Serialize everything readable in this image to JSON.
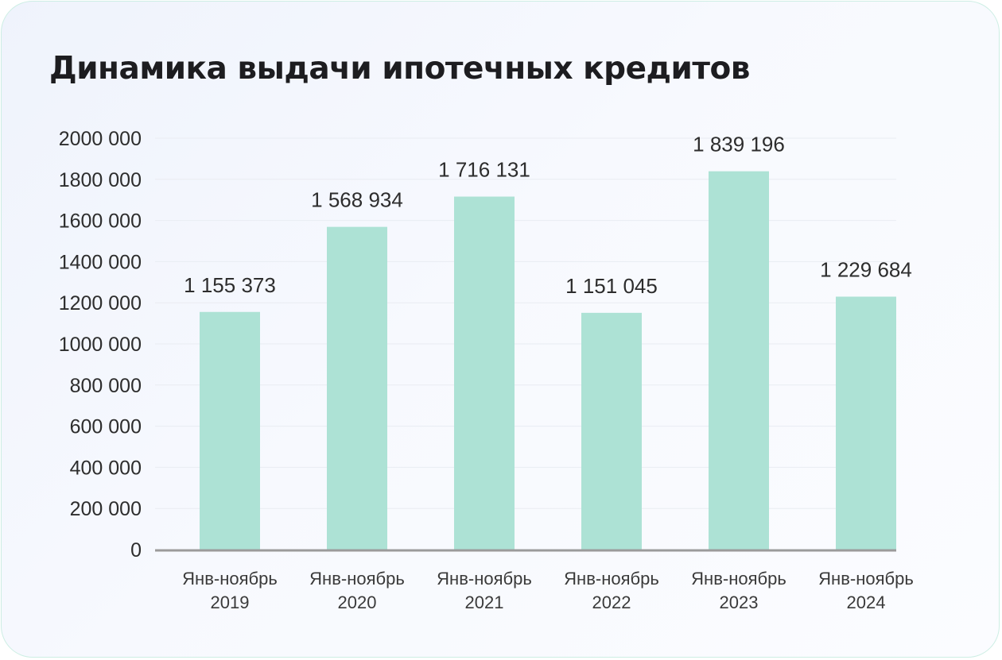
{
  "title": "Динамика выдачи ипотечных кредитов",
  "colors": {
    "bar": "#ade2d5",
    "axis": "#9b9b9b",
    "grid": "#e9ecf2",
    "text": "#2d2d2d"
  },
  "chart_data": {
    "type": "bar",
    "title": "Динамика выдачи ипотечных кредитов",
    "xlabel": "",
    "ylabel": "",
    "categories": [
      [
        "Янв-ноябрь",
        "2019"
      ],
      [
        "Янв-ноябрь",
        "2020"
      ],
      [
        "Янв-ноябрь",
        "2021"
      ],
      [
        "Янв-ноябрь",
        "2022"
      ],
      [
        "Янв-ноябрь",
        "2023"
      ],
      [
        "Янв-ноябрь",
        "2024"
      ]
    ],
    "values": [
      1155373,
      1568934,
      1716131,
      1151045,
      1839196,
      1229684
    ],
    "value_labels": [
      "1 155 373",
      "1 568 934",
      "1 716 131",
      "1 151 045",
      "1 839 196",
      "1 229 684"
    ],
    "ylim": [
      0,
      2000000
    ],
    "yticks": [
      0,
      200000,
      400000,
      600000,
      800000,
      1000000,
      1200000,
      1400000,
      1600000,
      1800000,
      2000000
    ],
    "ytick_labels": [
      "0",
      "200 000",
      "400 000",
      "600 000",
      "800 000",
      "1000 000",
      "1200 000",
      "1400 000",
      "1600 000",
      "1800 000",
      "2000 000"
    ],
    "grid": true,
    "legend": "none"
  }
}
